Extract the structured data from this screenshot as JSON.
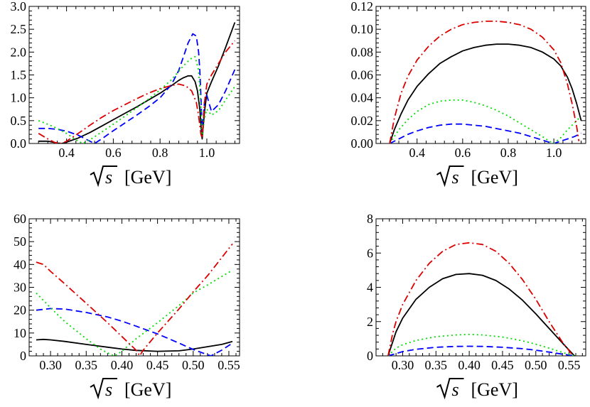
{
  "figure": {
    "xlabel_parts": {
      "sym": "s",
      "unit": "[GeV]"
    }
  },
  "chart_data": [
    {
      "type": "line",
      "title": "",
      "xlabel": "√s [GeV]",
      "ylabel": "",
      "xlim": [
        0.24,
        1.14
      ],
      "ylim": [
        0,
        3.0
      ],
      "xticks": [
        0.4,
        0.6,
        0.8,
        1.0
      ],
      "xtick_labels": [
        "0.4",
        "0.6",
        "0.8",
        "1.0"
      ],
      "yticks": [
        0,
        0.5,
        1.0,
        1.5,
        2.0,
        2.5,
        3.0
      ],
      "ytick_labels": [
        "0.0",
        "0.5",
        "1.0",
        "1.5",
        "2.0",
        "2.5",
        "3.0"
      ],
      "series": [
        {
          "color": "#000000",
          "dash": "solid",
          "x": [
            0.28,
            0.32,
            0.36,
            0.38,
            0.4,
            0.45,
            0.5,
            0.55,
            0.6,
            0.65,
            0.7,
            0.75,
            0.8,
            0.85,
            0.88,
            0.9,
            0.92,
            0.935,
            0.95,
            0.96,
            0.97,
            0.975,
            0.98,
            0.99,
            1.0,
            1.02,
            1.05,
            1.08,
            1.12
          ],
          "y": [
            0.05,
            0.05,
            0.01,
            0,
            0.03,
            0.12,
            0.24,
            0.38,
            0.52,
            0.66,
            0.8,
            0.95,
            1.1,
            1.27,
            1.38,
            1.44,
            1.48,
            1.48,
            1.35,
            1.15,
            0.75,
            0.4,
            0.1,
            0.7,
            1.1,
            1.35,
            1.7,
            2.1,
            2.65
          ]
        },
        {
          "color": "#0000ff",
          "dash": "dashed",
          "x": [
            0.28,
            0.32,
            0.36,
            0.4,
            0.45,
            0.5,
            0.52,
            0.55,
            0.6,
            0.65,
            0.7,
            0.75,
            0.8,
            0.85,
            0.88,
            0.9,
            0.92,
            0.94,
            0.955,
            0.965,
            0.97,
            0.975,
            0.98,
            0.99,
            1.0,
            1.02,
            1.05,
            1.08,
            1.12
          ],
          "y": [
            0.33,
            0.33,
            0.31,
            0.27,
            0.18,
            0.05,
            0,
            0.1,
            0.28,
            0.45,
            0.62,
            0.8,
            1.0,
            1.3,
            1.6,
            1.9,
            2.2,
            2.4,
            2.35,
            2.0,
            1.6,
            1.0,
            0.25,
            0.9,
            1.05,
            0.7,
            0.85,
            1.15,
            1.62
          ]
        },
        {
          "color": "#00dd00",
          "dash": "dotted",
          "x": [
            0.28,
            0.32,
            0.36,
            0.4,
            0.44,
            0.47,
            0.5,
            0.55,
            0.6,
            0.65,
            0.7,
            0.75,
            0.8,
            0.85,
            0.88,
            0.9,
            0.93,
            0.95,
            0.965,
            0.975,
            0.98,
            0.99,
            1.0,
            1.02,
            1.05,
            1.08,
            1.12
          ],
          "y": [
            0.5,
            0.42,
            0.33,
            0.22,
            0.08,
            0,
            0.08,
            0.25,
            0.42,
            0.6,
            0.78,
            0.97,
            1.17,
            1.4,
            1.58,
            1.7,
            1.85,
            1.9,
            1.6,
            0.8,
            0.18,
            0.55,
            0.75,
            0.62,
            0.72,
            0.95,
            1.25
          ]
        },
        {
          "color": "#dd0000",
          "dash": "dashdot",
          "x": [
            0.28,
            0.32,
            0.35,
            0.38,
            0.4,
            0.45,
            0.5,
            0.55,
            0.6,
            0.65,
            0.7,
            0.75,
            0.8,
            0.85,
            0.88,
            0.91,
            0.935,
            0.955,
            0.965,
            0.975,
            0.98,
            0.99,
            1.0,
            1.02,
            1.05,
            1.08,
            1.12
          ],
          "y": [
            0.22,
            0.1,
            0.02,
            0,
            0.05,
            0.22,
            0.4,
            0.57,
            0.72,
            0.85,
            0.98,
            1.1,
            1.2,
            1.27,
            1.3,
            1.26,
            1.15,
            0.9,
            0.6,
            0.2,
            0.12,
            0.9,
            1.3,
            1.5,
            1.75,
            2.0,
            2.25
          ]
        }
      ]
    },
    {
      "type": "line",
      "title": "",
      "xlabel": "√s [GeV]",
      "ylabel": "",
      "xlim": [
        0.22,
        1.14
      ],
      "ylim": [
        0,
        0.12
      ],
      "xticks": [
        0.4,
        0.6,
        0.8,
        1.0
      ],
      "xtick_labels": [
        "0.4",
        "0.6",
        "0.8",
        "1.0"
      ],
      "yticks": [
        0,
        0.02,
        0.04,
        0.06,
        0.08,
        0.1,
        0.12
      ],
      "ytick_labels": [
        "0.00",
        "0.02",
        "0.04",
        "0.06",
        "0.08",
        "0.10",
        "0.12"
      ],
      "series": [
        {
          "color": "#000000",
          "dash": "solid",
          "x": [
            0.28,
            0.3,
            0.33,
            0.36,
            0.4,
            0.45,
            0.5,
            0.55,
            0.6,
            0.65,
            0.7,
            0.75,
            0.8,
            0.85,
            0.9,
            0.95,
            1.0,
            1.03,
            1.06,
            1.08,
            1.1,
            1.12
          ],
          "y": [
            0,
            0.012,
            0.026,
            0.038,
            0.05,
            0.061,
            0.07,
            0.076,
            0.081,
            0.084,
            0.086,
            0.087,
            0.087,
            0.086,
            0.084,
            0.08,
            0.074,
            0.068,
            0.058,
            0.048,
            0.035,
            0.02
          ]
        },
        {
          "color": "#0000ff",
          "dash": "dashed",
          "x": [
            0.28,
            0.32,
            0.36,
            0.4,
            0.45,
            0.5,
            0.55,
            0.6,
            0.65,
            0.7,
            0.75,
            0.8,
            0.85,
            0.9,
            0.95,
            0.98,
            1.0,
            1.03,
            1.06,
            1.09,
            1.12
          ],
          "y": [
            0,
            0.004,
            0.008,
            0.011,
            0.014,
            0.016,
            0.017,
            0.017,
            0.016,
            0.015,
            0.013,
            0.011,
            0.009,
            0.006,
            0.003,
            0.001,
            0,
            0.002,
            0.004,
            0.006,
            0.009
          ]
        },
        {
          "color": "#00dd00",
          "dash": "dotted",
          "x": [
            0.28,
            0.32,
            0.36,
            0.4,
            0.45,
            0.5,
            0.55,
            0.6,
            0.65,
            0.7,
            0.75,
            0.8,
            0.85,
            0.9,
            0.95,
            0.98,
            1.0,
            1.03,
            1.06,
            1.09,
            1.11
          ],
          "y": [
            0,
            0.012,
            0.021,
            0.028,
            0.034,
            0.037,
            0.038,
            0.038,
            0.036,
            0.033,
            0.029,
            0.024,
            0.018,
            0.012,
            0.006,
            0.002,
            0,
            0.005,
            0.012,
            0.018,
            0.022
          ]
        },
        {
          "color": "#dd0000",
          "dash": "dashdot",
          "x": [
            0.28,
            0.3,
            0.33,
            0.36,
            0.4,
            0.45,
            0.5,
            0.55,
            0.6,
            0.65,
            0.7,
            0.75,
            0.8,
            0.85,
            0.9,
            0.95,
            1.0,
            1.03,
            1.06,
            1.08,
            1.1,
            1.11
          ],
          "y": [
            0,
            0.022,
            0.044,
            0.059,
            0.073,
            0.085,
            0.094,
            0.1,
            0.104,
            0.106,
            0.107,
            0.107,
            0.106,
            0.104,
            0.1,
            0.093,
            0.082,
            0.071,
            0.052,
            0.035,
            0.015,
            0.002
          ]
        }
      ]
    },
    {
      "type": "line",
      "title": "",
      "xlabel": "√s [GeV]",
      "ylabel": "",
      "xlim": [
        0.27,
        0.565
      ],
      "ylim": [
        0,
        60
      ],
      "xticks": [
        0.3,
        0.35,
        0.4,
        0.45,
        0.5,
        0.55
      ],
      "xtick_labels": [
        "0.30",
        "0.35",
        "0.40",
        "0.45",
        "0.50",
        "0.55"
      ],
      "yticks": [
        0,
        10,
        20,
        30,
        40,
        50,
        60
      ],
      "ytick_labels": [
        "0",
        "10",
        "20",
        "30",
        "40",
        "50",
        "60"
      ],
      "series": [
        {
          "color": "#000000",
          "dash": "solid",
          "x": [
            0.28,
            0.29,
            0.3,
            0.32,
            0.35,
            0.38,
            0.4,
            0.42,
            0.45,
            0.48,
            0.5,
            0.52,
            0.54,
            0.555
          ],
          "y": [
            7.0,
            7.2,
            7.0,
            6.3,
            5.0,
            3.8,
            3.0,
            2.4,
            2.0,
            2.2,
            3.0,
            4.0,
            5.0,
            6.3
          ]
        },
        {
          "color": "#0000ff",
          "dash": "dashed",
          "x": [
            0.28,
            0.3,
            0.32,
            0.35,
            0.38,
            0.4,
            0.42,
            0.45,
            0.48,
            0.5,
            0.52,
            0.525,
            0.54,
            0.555
          ],
          "y": [
            20.0,
            20.7,
            20.5,
            19.0,
            17.0,
            15.2,
            13.0,
            9.6,
            5.6,
            2.8,
            0.5,
            0,
            2.5,
            5.6
          ]
        },
        {
          "color": "#00dd00",
          "dash": "dotted",
          "x": [
            0.28,
            0.3,
            0.32,
            0.35,
            0.37,
            0.385,
            0.39,
            0.4,
            0.42,
            0.45,
            0.48,
            0.5,
            0.52,
            0.555
          ],
          "y": [
            27.5,
            21.0,
            15.0,
            7.5,
            3.0,
            0.5,
            0,
            2.0,
            7.5,
            14.5,
            22.0,
            27.5,
            31.0,
            37.5
          ]
        },
        {
          "color": "#dd0000",
          "dash": "dashdot",
          "x": [
            0.28,
            0.29,
            0.3,
            0.32,
            0.35,
            0.38,
            0.4,
            0.42,
            0.425,
            0.43,
            0.45,
            0.48,
            0.5,
            0.52,
            0.555
          ],
          "y": [
            41.0,
            40.0,
            37.0,
            31.5,
            23.0,
            14.5,
            8.5,
            2.5,
            0,
            2.5,
            10.0,
            20.5,
            28.0,
            35.0,
            49.0
          ]
        }
      ]
    },
    {
      "type": "line",
      "title": "",
      "xlabel": "√s [GeV]",
      "ylabel": "",
      "xlim": [
        0.26,
        0.575
      ],
      "ylim": [
        0,
        8
      ],
      "xticks": [
        0.3,
        0.35,
        0.4,
        0.45,
        0.5,
        0.55
      ],
      "xtick_labels": [
        "0.30",
        "0.35",
        "0.40",
        "0.45",
        "0.50",
        "0.55"
      ],
      "yticks": [
        0,
        2,
        4,
        6,
        8
      ],
      "ytick_labels": [
        "0",
        "2",
        "4",
        "6",
        "8"
      ],
      "series": [
        {
          "color": "#000000",
          "dash": "solid",
          "x": [
            0.278,
            0.29,
            0.3,
            0.32,
            0.34,
            0.36,
            0.38,
            0.4,
            0.42,
            0.44,
            0.46,
            0.48,
            0.5,
            0.52,
            0.54,
            0.558
          ],
          "y": [
            0,
            1.4,
            2.2,
            3.3,
            4.0,
            4.5,
            4.75,
            4.8,
            4.7,
            4.4,
            3.9,
            3.25,
            2.45,
            1.6,
            0.75,
            0
          ]
        },
        {
          "color": "#0000ff",
          "dash": "dashed",
          "x": [
            0.278,
            0.3,
            0.32,
            0.35,
            0.38,
            0.4,
            0.42,
            0.45,
            0.48,
            0.5,
            0.52,
            0.54,
            0.558
          ],
          "y": [
            0,
            0.25,
            0.38,
            0.5,
            0.55,
            0.56,
            0.55,
            0.5,
            0.42,
            0.33,
            0.22,
            0.1,
            0
          ]
        },
        {
          "color": "#00dd00",
          "dash": "dotted",
          "x": [
            0.278,
            0.29,
            0.3,
            0.32,
            0.35,
            0.38,
            0.4,
            0.42,
            0.45,
            0.48,
            0.5,
            0.52,
            0.54,
            0.558
          ],
          "y": [
            0,
            0.45,
            0.65,
            0.9,
            1.12,
            1.22,
            1.25,
            1.22,
            1.1,
            0.88,
            0.68,
            0.45,
            0.2,
            0
          ]
        },
        {
          "color": "#dd0000",
          "dash": "dashdot",
          "x": [
            0.278,
            0.285,
            0.29,
            0.3,
            0.32,
            0.34,
            0.36,
            0.38,
            0.4,
            0.42,
            0.44,
            0.46,
            0.48,
            0.5,
            0.52,
            0.54,
            0.556
          ],
          "y": [
            0,
            1.3,
            2.0,
            3.0,
            4.4,
            5.4,
            6.1,
            6.5,
            6.6,
            6.5,
            6.1,
            5.4,
            4.45,
            3.3,
            2.0,
            0.8,
            0
          ]
        }
      ]
    }
  ]
}
